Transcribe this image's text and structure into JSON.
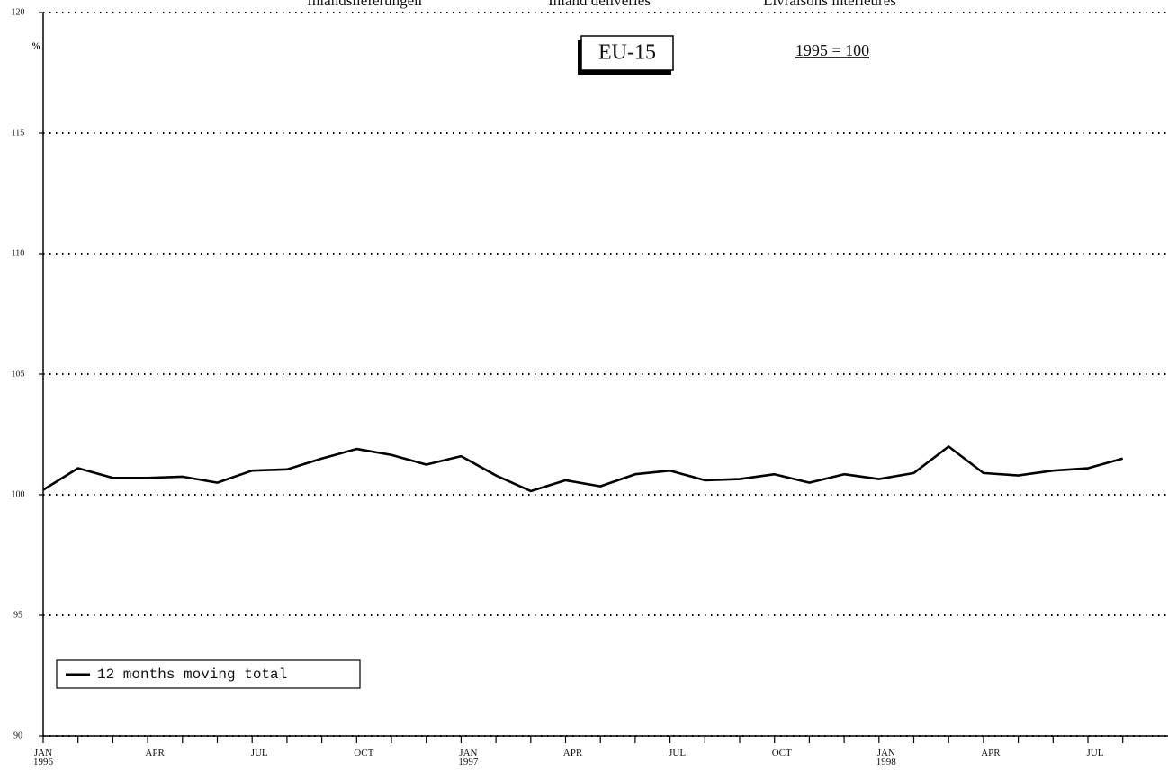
{
  "chart_data": {
    "type": "line",
    "header_texts": [
      "Inlandslieferungen",
      "Inland deliveries",
      "Livraisons intérieures"
    ],
    "title": "EU-15",
    "subtitle": "1995 = 100",
    "y_label": "%",
    "categories": [
      "JAN 1996",
      null,
      null,
      "APR",
      null,
      null,
      "JUL",
      null,
      null,
      "OCT",
      null,
      null,
      "JAN 1997",
      null,
      null,
      "APR",
      null,
      null,
      "JUL",
      null,
      null,
      "OCT",
      null,
      null,
      "JAN 1998",
      null,
      null,
      "APR",
      null,
      null,
      "JUL",
      null
    ],
    "series": [
      {
        "name": "12 months moving total",
        "color": "#000000",
        "values": [
          100.2,
          101.1,
          100.7,
          100.7,
          100.75,
          100.5,
          101.0,
          101.05,
          101.5,
          101.9,
          101.65,
          101.25,
          101.6,
          100.8,
          100.15,
          100.6,
          100.35,
          100.85,
          101.0,
          100.6,
          100.65,
          100.85,
          100.5,
          100.85,
          100.65,
          100.9,
          102.0,
          100.9,
          100.8,
          101.0,
          101.1,
          101.5
        ]
      }
    ],
    "ylim": [
      90,
      120
    ],
    "yticks": [
      90,
      95,
      100,
      105,
      110,
      115,
      120
    ],
    "grid": true,
    "legend": "lower left"
  }
}
